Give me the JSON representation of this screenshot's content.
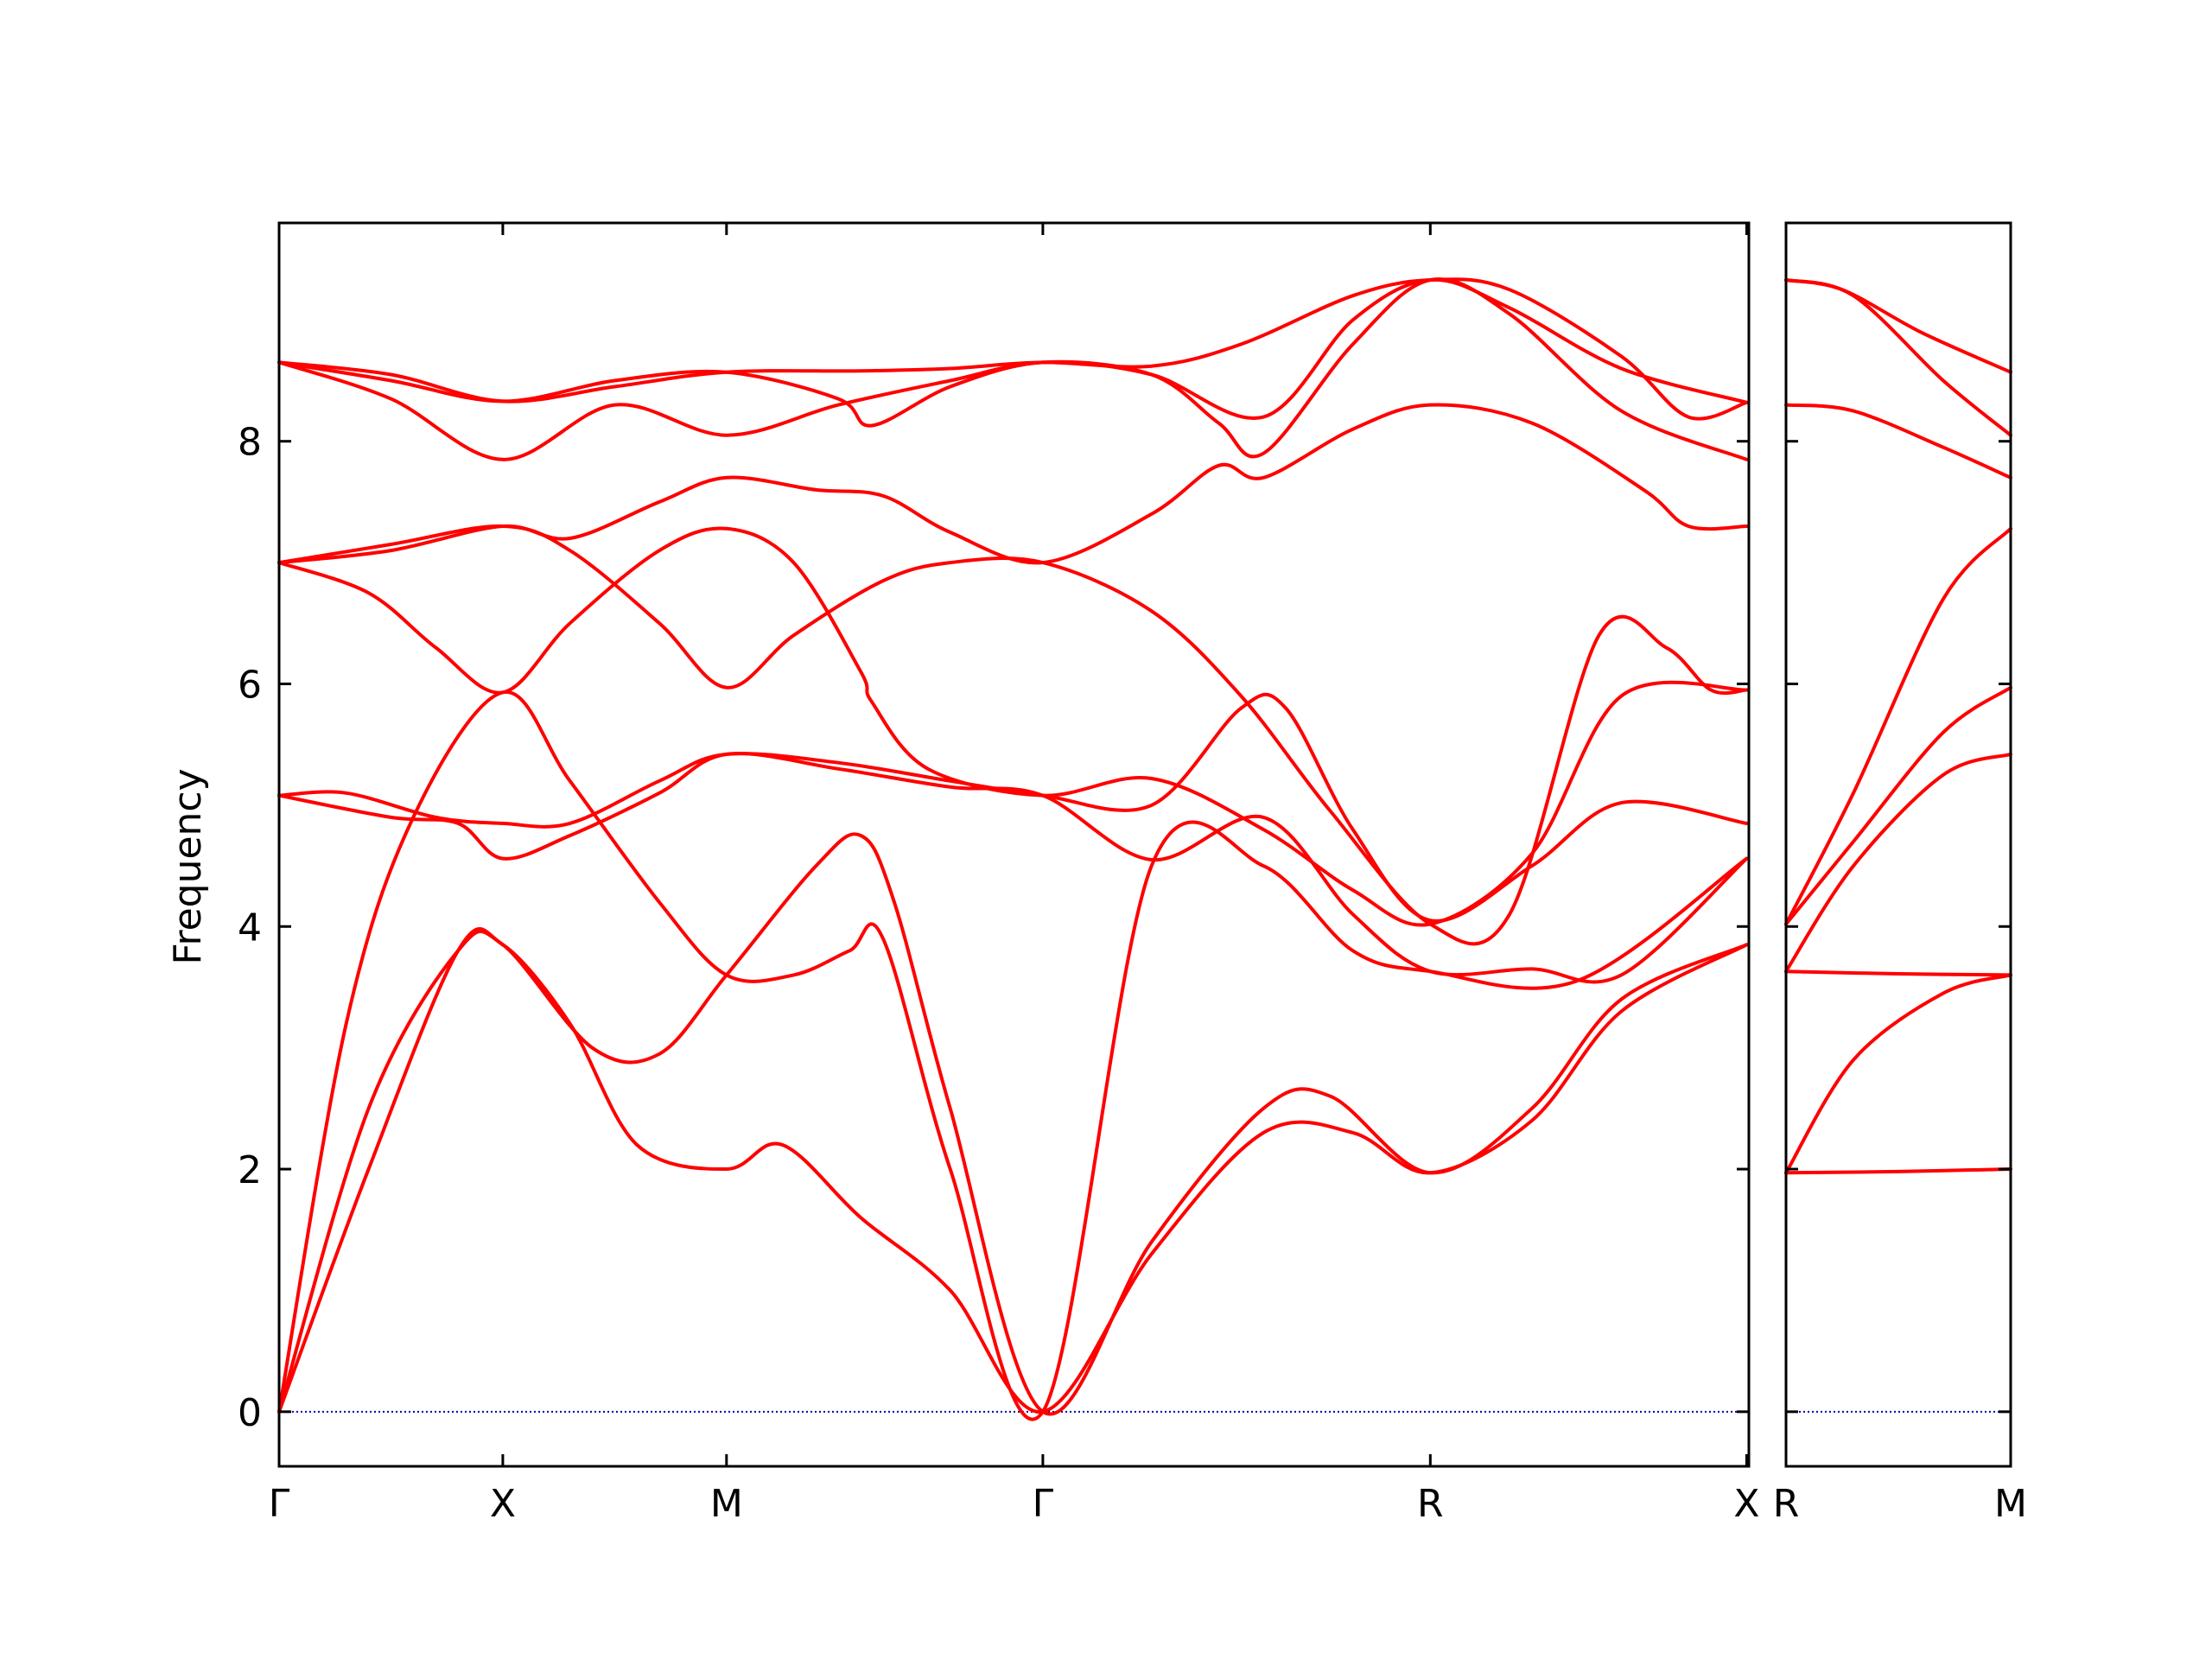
{
  "chart_data": {
    "type": "line",
    "ylabel": "Frequency",
    "ylim": [
      -0.45,
      9.8
    ],
    "yticks": [
      0,
      2,
      4,
      6,
      8
    ],
    "colors": {
      "bands": "#ff0000",
      "zero_line": "#0000aa",
      "frame": "#000000"
    },
    "panels": [
      {
        "id": "main",
        "xlim": [
          0,
          6.57
        ],
        "ticks": [
          {
            "x": 0.0,
            "label": "Γ"
          },
          {
            "x": 1.0,
            "label": "X"
          },
          {
            "x": 2.0,
            "label": "M"
          },
          {
            "x": 3.414,
            "label": "Γ"
          },
          {
            "x": 5.146,
            "label": "R"
          },
          {
            "x": 6.56,
            "label": "X"
          }
        ],
        "bands": [
          [
            [
              0,
              8.65
            ],
            [
              0.5,
              8.35
            ],
            [
              1,
              7.85
            ],
            [
              1.5,
              8.3
            ],
            [
              2,
              8.05
            ],
            [
              2.5,
              8.3
            ],
            [
              3.0,
              8.5
            ],
            [
              3.414,
              8.65
            ],
            [
              3.9,
              8.55
            ],
            [
              4.4,
              8.2
            ],
            [
              4.8,
              9.0
            ],
            [
              5.146,
              9.33
            ],
            [
              5.5,
              9.1
            ],
            [
              6.0,
              8.6
            ],
            [
              6.56,
              8.32
            ]
          ],
          [
            [
              0,
              8.65
            ],
            [
              0.5,
              8.5
            ],
            [
              1,
              8.33
            ],
            [
              1.5,
              8.5
            ],
            [
              2,
              8.57
            ],
            [
              2.5,
              8.35
            ],
            [
              2.65,
              8.13
            ],
            [
              3.0,
              8.45
            ],
            [
              3.414,
              8.65
            ],
            [
              3.9,
              8.55
            ],
            [
              4.2,
              8.15
            ],
            [
              4.4,
              7.9
            ],
            [
              4.8,
              8.8
            ],
            [
              5.146,
              9.33
            ],
            [
              5.5,
              9.05
            ],
            [
              6.0,
              8.25
            ],
            [
              6.56,
              7.85
            ]
          ],
          [
            [
              0,
              8.65
            ],
            [
              0.5,
              8.55
            ],
            [
              1,
              8.33
            ],
            [
              1.5,
              8.45
            ],
            [
              2,
              8.57
            ],
            [
              2.6,
              8.58
            ],
            [
              3.0,
              8.6
            ],
            [
              3.414,
              8.65
            ],
            [
              3.9,
              8.62
            ],
            [
              4.3,
              8.8
            ],
            [
              4.8,
              9.2
            ],
            [
              5.146,
              9.33
            ],
            [
              5.5,
              9.25
            ],
            [
              6.0,
              8.7
            ],
            [
              6.3,
              8.2
            ],
            [
              6.56,
              8.32
            ]
          ],
          [
            [
              0,
              7.0
            ],
            [
              0.5,
              7.1
            ],
            [
              1,
              7.3
            ],
            [
              1.3,
              7.2
            ],
            [
              1.7,
              7.5
            ],
            [
              2,
              7.7
            ],
            [
              2.4,
              7.6
            ],
            [
              2.7,
              7.55
            ],
            [
              3.0,
              7.25
            ],
            [
              3.414,
              7.0
            ],
            [
              3.9,
              7.4
            ],
            [
              4.2,
              7.8
            ],
            [
              4.4,
              7.7
            ],
            [
              4.8,
              8.1
            ],
            [
              5.146,
              8.3
            ],
            [
              5.6,
              8.15
            ],
            [
              6.1,
              7.6
            ],
            [
              6.3,
              7.3
            ],
            [
              6.56,
              7.3
            ]
          ],
          [
            [
              0,
              7.0
            ],
            [
              0.5,
              7.15
            ],
            [
              1,
              7.3
            ],
            [
              1.3,
              7.1
            ],
            [
              1.7,
              6.5
            ],
            [
              2,
              5.97
            ],
            [
              2.3,
              6.4
            ],
            [
              2.7,
              6.85
            ],
            [
              3.0,
              7.0
            ],
            [
              3.414,
              7.0
            ],
            [
              3.9,
              6.6
            ],
            [
              4.3,
              5.9
            ],
            [
              4.7,
              4.95
            ],
            [
              5.146,
              4.02
            ],
            [
              5.5,
              4.1
            ],
            [
              5.9,
              6.4
            ],
            [
              6.2,
              6.3
            ],
            [
              6.4,
              5.95
            ],
            [
              6.56,
              5.95
            ]
          ],
          [
            [
              0,
              7.0
            ],
            [
              0.4,
              6.75
            ],
            [
              0.7,
              6.3
            ],
            [
              1,
              5.93
            ],
            [
              1.3,
              6.5
            ],
            [
              1.7,
              7.1
            ],
            [
              2,
              7.28
            ],
            [
              2.3,
              7.0
            ],
            [
              2.6,
              6.1
            ],
            [
              2.65,
              5.85
            ],
            [
              2.9,
              5.3
            ],
            [
              3.414,
              5.08
            ],
            [
              3.9,
              5.22
            ],
            [
              4.4,
              4.8
            ],
            [
              4.8,
              4.3
            ],
            [
              5.146,
              4.02
            ],
            [
              5.6,
              4.6
            ],
            [
              6.0,
              5.9
            ],
            [
              6.56,
              5.95
            ]
          ],
          [
            [
              0,
              5.08
            ],
            [
              0.3,
              5.1
            ],
            [
              0.7,
              4.9
            ],
            [
              1,
              4.85
            ],
            [
              1.3,
              4.85
            ],
            [
              1.7,
              5.2
            ],
            [
              2,
              5.42
            ],
            [
              2.5,
              5.35
            ],
            [
              3.0,
              5.2
            ],
            [
              3.414,
              5.08
            ],
            [
              3.9,
              5.0
            ],
            [
              4.3,
              5.8
            ],
            [
              4.5,
              5.8
            ],
            [
              4.8,
              4.8
            ],
            [
              5.146,
              4.05
            ],
            [
              5.6,
              4.5
            ],
            [
              6.0,
              5.02
            ],
            [
              6.56,
              4.85
            ]
          ],
          [
            [
              0,
              5.08
            ],
            [
              0.5,
              4.9
            ],
            [
              0.8,
              4.85
            ],
            [
              1,
              4.56
            ],
            [
              1.3,
              4.75
            ],
            [
              1.7,
              5.1
            ],
            [
              2,
              5.42
            ],
            [
              2.5,
              5.3
            ],
            [
              3.0,
              5.15
            ],
            [
              3.414,
              5.08
            ],
            [
              3.9,
              4.55
            ],
            [
              4.4,
              4.9
            ],
            [
              4.8,
              4.1
            ],
            [
              5.146,
              3.63
            ],
            [
              5.6,
              3.65
            ],
            [
              6.0,
              3.6
            ],
            [
              6.56,
              4.56
            ]
          ],
          [
            [
              0,
              0.0
            ],
            [
              0.3,
              3.2
            ],
            [
              0.6,
              4.9
            ],
            [
              1,
              5.93
            ],
            [
              1.3,
              5.2
            ],
            [
              1.7,
              4.2
            ],
            [
              2,
              3.6
            ],
            [
              2.3,
              3.6
            ],
            [
              2.55,
              3.8
            ],
            [
              2.7,
              3.9
            ],
            [
              3.0,
              2.0
            ],
            [
              3.414,
              0.0
            ],
            [
              3.9,
              4.5
            ],
            [
              4.4,
              4.5
            ],
            [
              4.8,
              3.8
            ],
            [
              5.146,
              3.63
            ],
            [
              5.8,
              3.55
            ],
            [
              6.56,
              4.56
            ]
          ],
          [
            [
              0,
              0.0
            ],
            [
              0.4,
              2.5
            ],
            [
              0.8,
              3.8
            ],
            [
              1,
              3.85
            ],
            [
              1.4,
              3.0
            ],
            [
              1.7,
              2.95
            ],
            [
              2,
              3.6
            ],
            [
              2.4,
              4.5
            ],
            [
              2.6,
              4.75
            ],
            [
              2.75,
              4.2
            ],
            [
              3.0,
              2.5
            ],
            [
              3.414,
              0.0
            ],
            [
              3.9,
              1.4
            ],
            [
              4.4,
              2.5
            ],
            [
              4.7,
              2.6
            ],
            [
              5.146,
              1.97
            ],
            [
              5.6,
              2.5
            ],
            [
              6.0,
              3.4
            ],
            [
              6.56,
              3.85
            ]
          ],
          [
            [
              0,
              0.0
            ],
            [
              0.4,
              2.0
            ],
            [
              0.8,
              3.8
            ],
            [
              1,
              3.85
            ],
            [
              1.3,
              3.2
            ],
            [
              1.6,
              2.2
            ],
            [
              2,
              2.0
            ],
            [
              2.25,
              2.2
            ],
            [
              2.6,
              1.6
            ],
            [
              3.0,
              1.0
            ],
            [
              3.414,
              0.0
            ],
            [
              3.9,
              1.3
            ],
            [
              4.4,
              2.3
            ],
            [
              4.8,
              2.3
            ],
            [
              5.146,
              1.97
            ],
            [
              5.6,
              2.4
            ],
            [
              6.0,
              3.3
            ],
            [
              6.56,
              3.85
            ]
          ]
        ]
      },
      {
        "id": "side",
        "xlim": [
          0,
          1.0
        ],
        "ticks": [
          {
            "x": 0.0,
            "label": "R"
          },
          {
            "x": 1.0,
            "label": "M"
          }
        ],
        "bands": [
          [
            [
              0,
              9.33
            ],
            [
              0.25,
              9.25
            ],
            [
              0.6,
              8.9
            ],
            [
              1.0,
              8.57
            ]
          ],
          [
            [
              0,
              9.33
            ],
            [
              0.3,
              9.2
            ],
            [
              0.7,
              8.5
            ],
            [
              1.0,
              8.05
            ]
          ],
          [
            [
              0,
              8.3
            ],
            [
              0.3,
              8.25
            ],
            [
              0.7,
              7.95
            ],
            [
              1.0,
              7.7
            ]
          ],
          [
            [
              0,
              4.02
            ],
            [
              0.3,
              5.1
            ],
            [
              0.7,
              6.7
            ],
            [
              1.0,
              7.28
            ]
          ],
          [
            [
              0,
              4.02
            ],
            [
              0.3,
              4.7
            ],
            [
              0.7,
              5.6
            ],
            [
              1.0,
              5.97
            ]
          ],
          [
            [
              0,
              3.63
            ],
            [
              0.3,
              4.5
            ],
            [
              0.7,
              5.25
            ],
            [
              1.0,
              5.42
            ]
          ],
          [
            [
              0,
              3.63
            ],
            [
              0.5,
              3.61
            ],
            [
              1.0,
              3.6
            ]
          ],
          [
            [
              0,
              1.97
            ],
            [
              0.3,
              2.9
            ],
            [
              0.7,
              3.45
            ],
            [
              1.0,
              3.6
            ]
          ],
          [
            [
              0,
              1.97
            ],
            [
              0.5,
              1.98
            ],
            [
              1.0,
              2.0
            ]
          ]
        ]
      }
    ]
  }
}
